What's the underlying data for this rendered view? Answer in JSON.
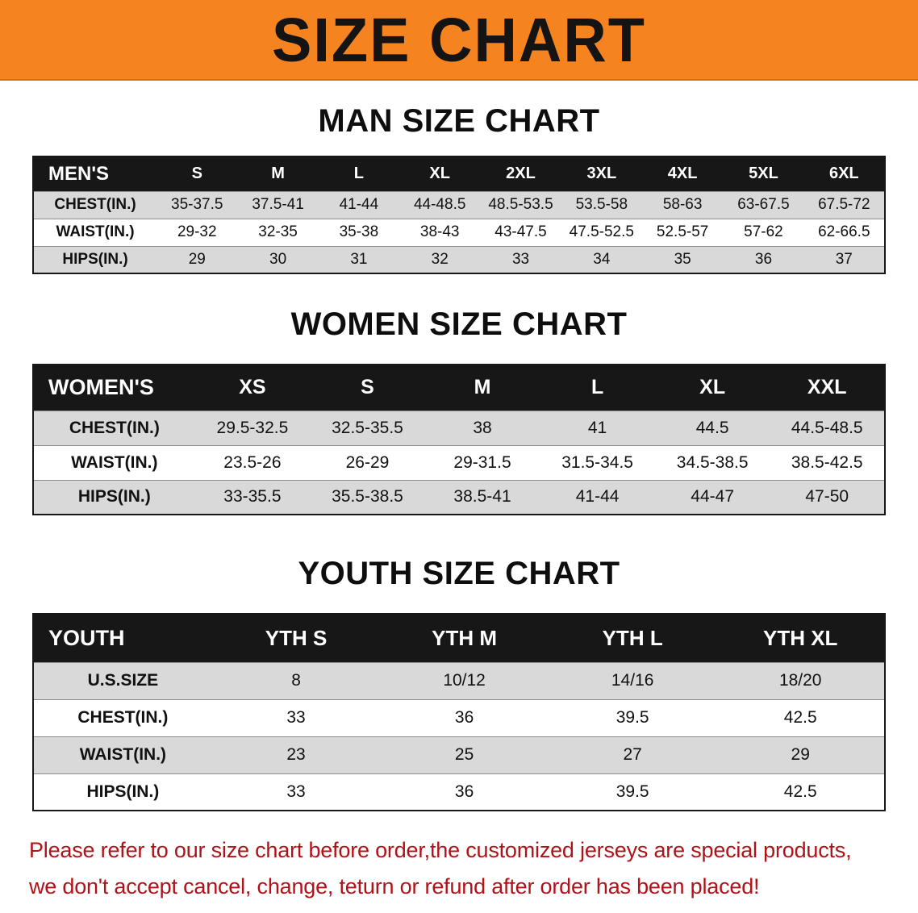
{
  "banner": {
    "title": "SIZE CHART",
    "bg_color": "#f5831f",
    "text_color": "#141414"
  },
  "chart_data": [
    {
      "type": "table",
      "title": "MAN SIZE CHART",
      "header": [
        "MEN'S",
        "S",
        "M",
        "L",
        "XL",
        "2XL",
        "3XL",
        "4XL",
        "5XL",
        "6XL"
      ],
      "rows": [
        [
          "CHEST(IN.)",
          "35-37.5",
          "37.5-41",
          "41-44",
          "44-48.5",
          "48.5-53.5",
          "53.5-58",
          "58-63",
          "63-67.5",
          "67.5-72"
        ],
        [
          "WAIST(IN.)",
          "29-32",
          "32-35",
          "35-38",
          "38-43",
          "43-47.5",
          "47.5-52.5",
          "52.5-57",
          "57-62",
          "62-66.5"
        ],
        [
          "HIPS(IN.)",
          "29",
          "30",
          "31",
          "32",
          "33",
          "34",
          "35",
          "36",
          "37"
        ]
      ]
    },
    {
      "type": "table",
      "title": "WOMEN SIZE CHART",
      "header": [
        "WOMEN'S",
        "XS",
        "S",
        "M",
        "L",
        "XL",
        "XXL"
      ],
      "rows": [
        [
          "CHEST(IN.)",
          "29.5-32.5",
          "32.5-35.5",
          "38",
          "41",
          "44.5",
          "44.5-48.5"
        ],
        [
          "WAIST(IN.)",
          "23.5-26",
          "26-29",
          "29-31.5",
          "31.5-34.5",
          "34.5-38.5",
          "38.5-42.5"
        ],
        [
          "HIPS(IN.)",
          "33-35.5",
          "35.5-38.5",
          "38.5-41",
          "41-44",
          "44-47",
          "47-50"
        ]
      ]
    },
    {
      "type": "table",
      "title": "YOUTH SIZE CHART",
      "header": [
        "YOUTH",
        "YTH S",
        "YTH M",
        "YTH L",
        "YTH XL"
      ],
      "rows": [
        [
          "U.S.SIZE",
          "8",
          "10/12",
          "14/16",
          "18/20"
        ],
        [
          "CHEST(IN.)",
          "33",
          "36",
          "39.5",
          "42.5"
        ],
        [
          "WAIST(IN.)",
          "23",
          "25",
          "27",
          "29"
        ],
        [
          "HIPS(IN.)",
          "33",
          "36",
          "39.5",
          "42.5"
        ]
      ]
    }
  ],
  "disclaimer": {
    "line1": "Please refer to our size chart before order,the customized jerseys are special products,",
    "line2": "we don't accept cancel, change, teturn or refund after order has been placed!",
    "text_color": "#b11217"
  }
}
